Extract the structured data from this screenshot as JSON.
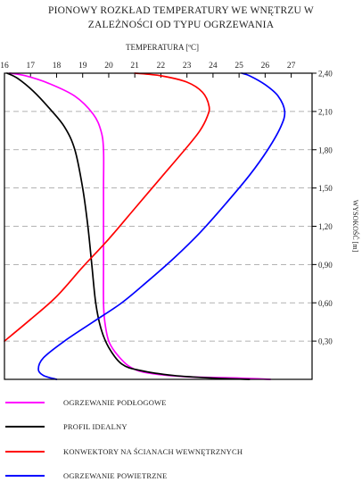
{
  "chart_data": {
    "type": "line",
    "title": [
      "PIONOWY ROZKŁAD TEMPERATURY WE WNĘTRZU W",
      "ZALEŻNOŚCI OD TYPU OGRZEWANIA"
    ],
    "xlabel": "TEMPERATURA [ºC]",
    "ylabel": "WYSOKOŚĆ [m]",
    "x_ticks": [
      "16",
      "17",
      "18",
      "19",
      "20",
      "21",
      "22",
      "23",
      "24",
      "25",
      "26",
      "27"
    ],
    "y_ticks": [
      "0,30",
      "0,60",
      "0,90",
      "1,20",
      "1,50",
      "1,80",
      "2,10",
      "2,40"
    ],
    "xlim": [
      16,
      27.8
    ],
    "ylim": [
      0,
      2.4
    ],
    "grid": "dashed horizontal lines at y ticks",
    "series": [
      {
        "name": "OGRZEWANIE PODŁOGOWE",
        "color": "#ff00ff",
        "points": [
          [
            26.2,
            0.0
          ],
          [
            25.0,
            0.01
          ],
          [
            23.0,
            0.02
          ],
          [
            21.5,
            0.05
          ],
          [
            20.8,
            0.1
          ],
          [
            20.3,
            0.2
          ],
          [
            20.0,
            0.3
          ],
          [
            19.85,
            0.45
          ],
          [
            19.8,
            0.6
          ],
          [
            19.8,
            0.9
          ],
          [
            19.8,
            1.2
          ],
          [
            19.8,
            1.5
          ],
          [
            19.8,
            1.8
          ],
          [
            19.7,
            1.95
          ],
          [
            19.4,
            2.08
          ],
          [
            18.7,
            2.22
          ],
          [
            17.7,
            2.32
          ],
          [
            16.8,
            2.38
          ],
          [
            16.2,
            2.4
          ]
        ]
      },
      {
        "name": "PROFIL IDEALNY",
        "color": "#000000",
        "points": [
          [
            25.4,
            0.0
          ],
          [
            24.0,
            0.01
          ],
          [
            22.5,
            0.03
          ],
          [
            21.2,
            0.07
          ],
          [
            20.5,
            0.12
          ],
          [
            20.0,
            0.25
          ],
          [
            19.7,
            0.4
          ],
          [
            19.5,
            0.6
          ],
          [
            19.35,
            0.9
          ],
          [
            19.2,
            1.2
          ],
          [
            19.0,
            1.5
          ],
          [
            18.7,
            1.8
          ],
          [
            18.3,
            1.98
          ],
          [
            17.7,
            2.13
          ],
          [
            17.1,
            2.26
          ],
          [
            16.5,
            2.36
          ],
          [
            16.1,
            2.4
          ]
        ]
      },
      {
        "name": "KONWEKTORY NA ŚCIANACH WEWNĘTRZNYCH",
        "color": "#ff0000",
        "points": [
          [
            16.0,
            0.3
          ],
          [
            17.0,
            0.47
          ],
          [
            18.0,
            0.65
          ],
          [
            19.0,
            0.88
          ],
          [
            20.0,
            1.1
          ],
          [
            21.0,
            1.34
          ],
          [
            22.0,
            1.58
          ],
          [
            23.0,
            1.82
          ],
          [
            23.5,
            1.95
          ],
          [
            23.78,
            2.06
          ],
          [
            23.85,
            2.14
          ],
          [
            23.6,
            2.25
          ],
          [
            23.0,
            2.33
          ],
          [
            22.0,
            2.38
          ],
          [
            21.0,
            2.4
          ]
        ]
      },
      {
        "name": "OGRZEWANIE POWIETRZNE",
        "color": "#0000ff",
        "points": [
          [
            18.0,
            0.0
          ],
          [
            17.5,
            0.03
          ],
          [
            17.3,
            0.08
          ],
          [
            17.5,
            0.17
          ],
          [
            18.3,
            0.3
          ],
          [
            19.4,
            0.45
          ],
          [
            20.5,
            0.6
          ],
          [
            21.5,
            0.77
          ],
          [
            22.5,
            0.95
          ],
          [
            23.5,
            1.15
          ],
          [
            24.5,
            1.38
          ],
          [
            25.4,
            1.6
          ],
          [
            26.1,
            1.8
          ],
          [
            26.6,
            1.98
          ],
          [
            26.75,
            2.1
          ],
          [
            26.5,
            2.22
          ],
          [
            26.0,
            2.31
          ],
          [
            25.4,
            2.38
          ],
          [
            25.1,
            2.4
          ]
        ]
      }
    ]
  }
}
